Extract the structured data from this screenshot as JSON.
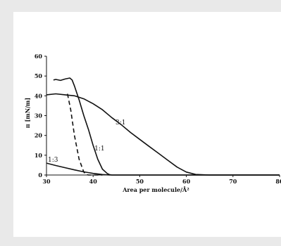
{
  "chart_data": {
    "type": "line",
    "xlabel": "Area per molecule/Å²",
    "ylabel": "π [mN/m]",
    "xlim": [
      30,
      80
    ],
    "ylim": [
      0,
      60
    ],
    "x_ticks": [
      30,
      40,
      50,
      60,
      70,
      80
    ],
    "y_ticks": [
      0,
      10,
      20,
      30,
      40,
      50,
      60
    ],
    "grid": false,
    "legend": "none",
    "series": [
      {
        "name": "1:3",
        "style": "solid",
        "x": [
          30,
          32,
          34,
          36,
          38,
          40,
          42,
          43.5,
          45,
          50,
          60,
          80
        ],
        "y": [
          6,
          4.8,
          3.7,
          2.6,
          1.6,
          0.8,
          0.25,
          0.05,
          0,
          0,
          0,
          0
        ]
      },
      {
        "name": "",
        "style": "dashed",
        "x": [
          34.5,
          35.2,
          36,
          37,
          38,
          38.5,
          39,
          40,
          42
        ],
        "y": [
          41,
          33,
          20,
          8,
          1.5,
          0.3,
          0,
          0,
          0
        ]
      },
      {
        "name": "",
        "style": "solid",
        "x": [
          31.5,
          32,
          33,
          34,
          35,
          35.5,
          36,
          37,
          38,
          39,
          40,
          41,
          42,
          43,
          43.5,
          44,
          45,
          50,
          80
        ],
        "y": [
          48,
          48.3,
          47.8,
          48.5,
          49,
          48,
          45,
          38,
          30,
          23,
          15,
          8,
          3,
          0.8,
          0.2,
          0,
          0,
          0,
          0
        ]
      },
      {
        "name": "3:1",
        "style": "solid",
        "x": [
          30,
          32,
          34,
          36,
          38,
          40,
          42,
          44,
          46,
          48,
          50,
          52,
          54,
          56,
          58,
          60,
          62,
          65,
          70,
          80
        ],
        "y": [
          40.5,
          41,
          40.5,
          40,
          38.5,
          36,
          33,
          29,
          25.5,
          21.5,
          18,
          14.5,
          11,
          7.5,
          4,
          1.5,
          0.3,
          0,
          0,
          0
        ]
      }
    ],
    "annotations": [
      {
        "text": "1:3",
        "x": 30.3,
        "y": 6.8
      },
      {
        "text": "1:1",
        "x": 40.3,
        "y": 12.5
      },
      {
        "text": "3:1",
        "x": 44.8,
        "y": 25.5
      }
    ]
  }
}
